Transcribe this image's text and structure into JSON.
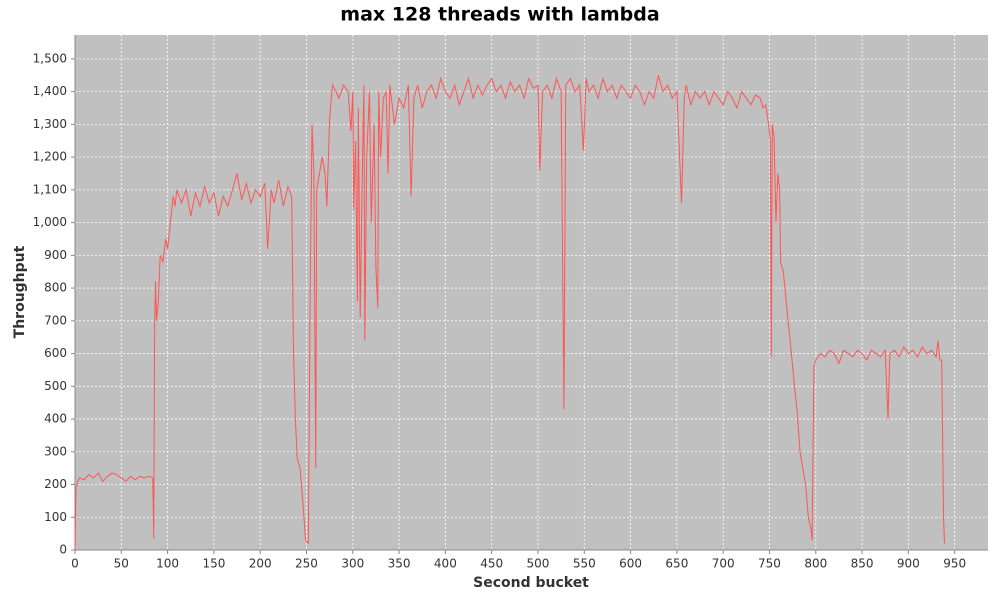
{
  "chart_data": {
    "type": "line",
    "title": "max 128 threads with lambda",
    "x_label": "Second bucket",
    "y_label": "Throughput",
    "xlim": [
      0,
      986
    ],
    "xticks": [
      0,
      50,
      100,
      150,
      200,
      250,
      300,
      350,
      400,
      450,
      500,
      550,
      600,
      650,
      700,
      750,
      800,
      850,
      900,
      950
    ],
    "ylim": [
      0,
      1573
    ],
    "yticks": [
      0,
      100,
      200,
      300,
      400,
      500,
      600,
      700,
      800,
      900,
      {
        "value": 1000,
        "label": "1,000"
      },
      {
        "value": 1100,
        "label": "1,100"
      },
      {
        "value": 1200,
        "label": "1,200"
      },
      {
        "value": 1300,
        "label": "1,300"
      },
      {
        "value": 1400,
        "label": "1,400"
      },
      {
        "value": 1500,
        "label": "1,500"
      }
    ],
    "grid": true,
    "series": [
      {
        "name": "Throughput",
        "color": "#ff5555",
        "x": [
          0,
          1,
          3,
          5,
          10,
          15,
          20,
          25,
          30,
          35,
          40,
          45,
          50,
          55,
          60,
          65,
          70,
          75,
          80,
          84,
          85,
          86,
          87,
          88,
          90,
          92,
          95,
          98,
          100,
          103,
          106,
          108,
          110,
          115,
          120,
          125,
          130,
          135,
          140,
          145,
          150,
          155,
          160,
          165,
          170,
          175,
          180,
          185,
          190,
          195,
          200,
          205,
          208,
          212,
          215,
          220,
          225,
          230,
          234,
          236,
          238,
          240,
          243,
          246,
          249,
          252,
          254,
          256,
          258,
          260,
          261,
          264,
          267,
          270,
          272,
          275,
          278,
          282,
          285,
          290,
          295,
          298,
          300,
          301,
          303,
          305,
          306,
          308,
          310,
          312,
          313,
          315,
          318,
          320,
          323,
          325,
          327,
          328,
          330,
          333,
          336,
          338,
          340,
          345,
          350,
          355,
          360,
          363,
          366,
          370,
          375,
          380,
          385,
          390,
          395,
          400,
          405,
          410,
          415,
          420,
          425,
          430,
          435,
          440,
          445,
          450,
          455,
          460,
          465,
          470,
          475,
          480,
          485,
          490,
          495,
          500,
          502,
          505,
          510,
          515,
          520,
          525,
          528,
          530,
          535,
          540,
          545,
          549,
          552,
          555,
          560,
          565,
          570,
          575,
          580,
          585,
          590,
          595,
          600,
          605,
          610,
          615,
          620,
          625,
          630,
          635,
          640,
          645,
          650,
          655,
          658,
          660,
          665,
          670,
          675,
          680,
          685,
          690,
          695,
          700,
          705,
          710,
          715,
          720,
          725,
          730,
          735,
          740,
          743,
          746,
          749,
          751,
          752,
          753,
          755,
          757,
          759,
          761,
          762,
          765,
          768,
          770,
          772,
          775,
          777,
          780,
          783,
          786,
          789,
          792,
          795,
          796,
          798,
          800,
          805,
          810,
          815,
          820,
          825,
          830,
          835,
          840,
          845,
          850,
          855,
          860,
          865,
          870,
          875,
          878,
          880,
          885,
          890,
          895,
          900,
          905,
          910,
          915,
          920,
          925,
          930,
          932,
          934,
          936,
          938,
          939
        ],
        "values": [
          0,
          190,
          210,
          220,
          215,
          230,
          220,
          235,
          210,
          225,
          235,
          230,
          220,
          210,
          225,
          215,
          225,
          220,
          225,
          220,
          35,
          680,
          820,
          700,
          760,
          900,
          880,
          950,
          920,
          1000,
          1080,
          1050,
          1100,
          1060,
          1100,
          1020,
          1090,
          1050,
          1110,
          1060,
          1090,
          1020,
          1080,
          1050,
          1100,
          1150,
          1070,
          1120,
          1060,
          1100,
          1080,
          1120,
          920,
          1100,
          1060,
          1130,
          1050,
          1110,
          1080,
          600,
          400,
          280,
          250,
          150,
          30,
          20,
          800,
          1300,
          1150,
          250,
          1100,
          1150,
          1200,
          1150,
          1050,
          1320,
          1420,
          1400,
          1380,
          1420,
          1400,
          1280,
          1400,
          1040,
          1250,
          760,
          1350,
          710,
          1100,
          1420,
          640,
          1200,
          1400,
          1000,
          1300,
          860,
          740,
          1400,
          1200,
          1380,
          1400,
          1150,
          1420,
          1300,
          1380,
          1350,
          1420,
          1080,
          1380,
          1420,
          1350,
          1400,
          1420,
          1380,
          1440,
          1400,
          1380,
          1420,
          1360,
          1400,
          1440,
          1380,
          1420,
          1390,
          1420,
          1440,
          1400,
          1420,
          1380,
          1430,
          1400,
          1420,
          1380,
          1440,
          1410,
          1420,
          1160,
          1400,
          1420,
          1380,
          1440,
          1400,
          430,
          1420,
          1440,
          1400,
          1420,
          1220,
          1440,
          1400,
          1420,
          1380,
          1440,
          1400,
          1420,
          1380,
          1420,
          1400,
          1380,
          1420,
          1400,
          1360,
          1400,
          1380,
          1450,
          1400,
          1420,
          1380,
          1400,
          1060,
          1380,
          1420,
          1360,
          1400,
          1380,
          1400,
          1360,
          1400,
          1380,
          1360,
          1400,
          1380,
          1350,
          1400,
          1380,
          1360,
          1390,
          1380,
          1350,
          1360,
          1300,
          1250,
          590,
          1300,
          1260,
          1000,
          1150,
          1100,
          880,
          850,
          760,
          700,
          650,
          560,
          500,
          420,
          300,
          250,
          200,
          100,
          60,
          30,
          560,
          580,
          600,
          590,
          610,
          600,
          570,
          610,
          600,
          590,
          610,
          600,
          580,
          610,
          600,
          590,
          610,
          400,
          600,
          610,
          590,
          620,
          600,
          610,
          590,
          620,
          600,
          610,
          590,
          640,
          580,
          580,
          100,
          20
        ]
      }
    ]
  }
}
